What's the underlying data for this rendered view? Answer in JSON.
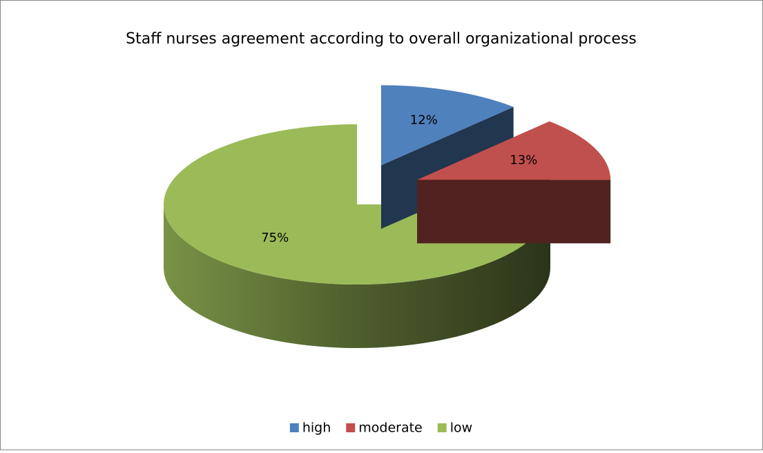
{
  "chart_data": {
    "type": "pie",
    "title": "Staff nurses agreement according to overall organizational process",
    "categories": [
      "high",
      "moderate",
      "low"
    ],
    "values": [
      12,
      13,
      75
    ],
    "value_labels": [
      "12%",
      "13%",
      "75%"
    ],
    "colors": [
      "#4f81bd",
      "#c0504d",
      "#9bbb59"
    ],
    "legend": "bottom"
  }
}
